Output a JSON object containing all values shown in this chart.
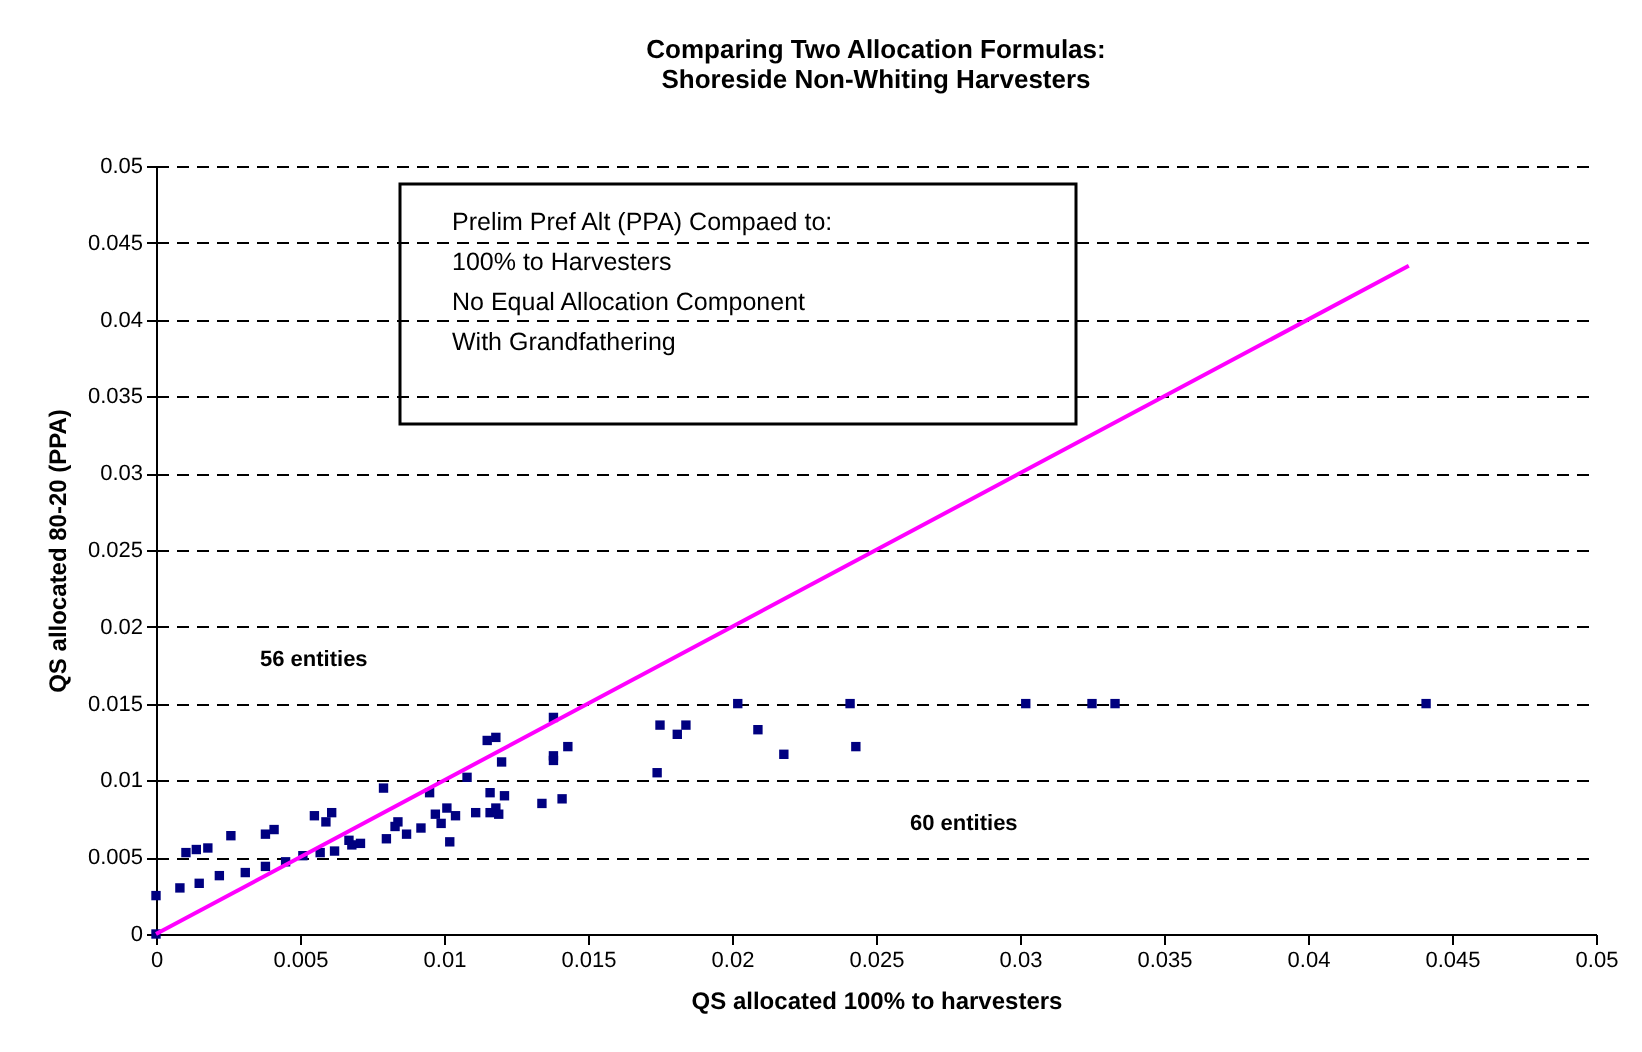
{
  "chart_data": {
    "type": "scatter",
    "title": [
      "Comparing Two Allocation Formulas:",
      "Shoreside Non-Whiting Harvesters"
    ],
    "xlabel": "QS allocated 100% to harvesters",
    "ylabel": "QS allocated 80-20 (PPA)",
    "xlim": [
      0,
      0.05
    ],
    "ylim": [
      0,
      0.05
    ],
    "xticks": [
      0,
      0.005,
      0.01,
      0.015,
      0.02,
      0.025,
      0.03,
      0.035,
      0.04,
      0.045,
      0.05
    ],
    "yticks": [
      0,
      0.005,
      0.01,
      0.015,
      0.02,
      0.025,
      0.03,
      0.035,
      0.04,
      0.045,
      0.05
    ],
    "grid": "y",
    "annotations": [
      "Prelim Pref Alt (PPA) Compaed to:\n100% to Harvesters\nNo Equal Allocation Component\nWith Grandfathering",
      "56 entities",
      "60 entities"
    ],
    "series": [
      {
        "marker": "square",
        "color": "#000080",
        "x": [
          0,
          0,
          0.00083,
          0.0015,
          0.0022,
          0.0031,
          0.0038,
          0.0045,
          0.0051,
          0.0057,
          0.0062,
          0.00104,
          0.0014,
          0.0018,
          0.0026,
          0.0038,
          0.0041,
          0.0055,
          0.0059,
          0.0061,
          0.0067,
          0.0068,
          0.0071,
          0.0079,
          0.008,
          0.0083,
          0.0084,
          0.0087,
          0.0092,
          0.0095,
          0.0097,
          0.0101,
          0.0102,
          0.0104,
          0.0099,
          0.0108,
          0.0111,
          0.0115,
          0.0116,
          0.0116,
          0.0118,
          0.0118,
          0.0119,
          0.012,
          0.0121,
          0.0134,
          0.0138,
          0.0138,
          0.0138,
          0.0141,
          0.0143,
          0.0174,
          0.0175,
          0.0181,
          0.0184,
          0.0202,
          0.0209,
          0.0218,
          0.0241,
          0.0243,
          0.0302,
          0.0325,
          0.0333,
          0.0441
        ],
        "values": [
          0,
          0.0025,
          0.003,
          0.0033,
          0.0038,
          0.004,
          0.0044,
          0.0047,
          0.0051,
          0.0053,
          0.0054,
          0.0053,
          0.0055,
          0.0056,
          0.0064,
          0.0065,
          0.0068,
          0.0077,
          0.0073,
          0.0079,
          0.0061,
          0.0058,
          0.0059,
          0.0095,
          0.0062,
          0.007,
          0.0073,
          0.0065,
          0.0069,
          0.0092,
          0.0078,
          0.0082,
          0.006,
          0.0077,
          0.0072,
          0.0102,
          0.0079,
          0.0126,
          0.0092,
          0.0079,
          0.0082,
          0.0128,
          0.0078,
          0.0112,
          0.009,
          0.0085,
          0.0141,
          0.0116,
          0.0113,
          0.0088,
          0.0122,
          0.0105,
          0.0136,
          0.013,
          0.0136,
          0.015,
          0.0133,
          0.0117,
          0.015,
          0.0122,
          0.015,
          0.015,
          0.015,
          0.015
        ]
      },
      {
        "type": "line",
        "color": "#ff00ff",
        "x": [
          0,
          0.0435
        ],
        "values": [
          0,
          0.0435
        ]
      }
    ]
  }
}
